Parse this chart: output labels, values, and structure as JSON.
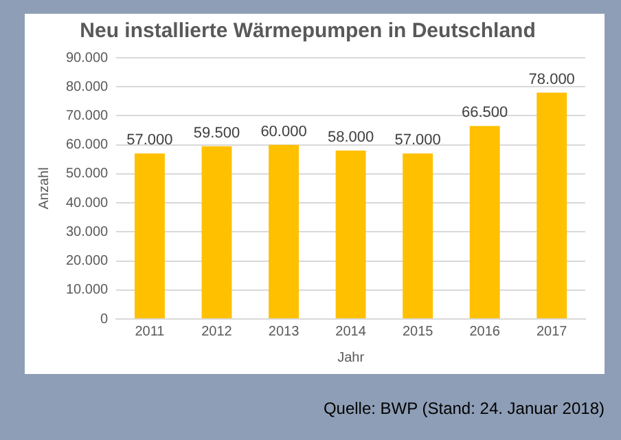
{
  "chart_data": {
    "type": "bar",
    "title": "Neu installierte Wärmepumpen in Deutschland",
    "xlabel": "Jahr",
    "ylabel": "Anzahl",
    "categories": [
      "2011",
      "2012",
      "2013",
      "2014",
      "2015",
      "2016",
      "2017"
    ],
    "values": [
      57000,
      59500,
      60000,
      58000,
      57000,
      66500,
      78000
    ],
    "value_labels": [
      "57.000",
      "59.500",
      "60.000",
      "58.000",
      "57.000",
      "66.500",
      "78.000"
    ],
    "color": "#ffc000",
    "ylim": [
      0,
      90000
    ],
    "yticks": [
      {
        "value": 0,
        "label": "0"
      },
      {
        "value": 10000,
        "label": "10.000"
      },
      {
        "value": 20000,
        "label": "20.000"
      },
      {
        "value": 30000,
        "label": "30.000"
      },
      {
        "value": 40000,
        "label": "40.000"
      },
      {
        "value": 50000,
        "label": "50.000"
      },
      {
        "value": 60000,
        "label": "60.000"
      },
      {
        "value": 70000,
        "label": "70.000"
      },
      {
        "value": 80000,
        "label": "80.000"
      },
      {
        "value": 90000,
        "label": "90.000"
      }
    ],
    "grid": "y",
    "legend": false,
    "annotations": [
      "Quelle: BWP (Stand: 24. Januar 2018)"
    ]
  }
}
